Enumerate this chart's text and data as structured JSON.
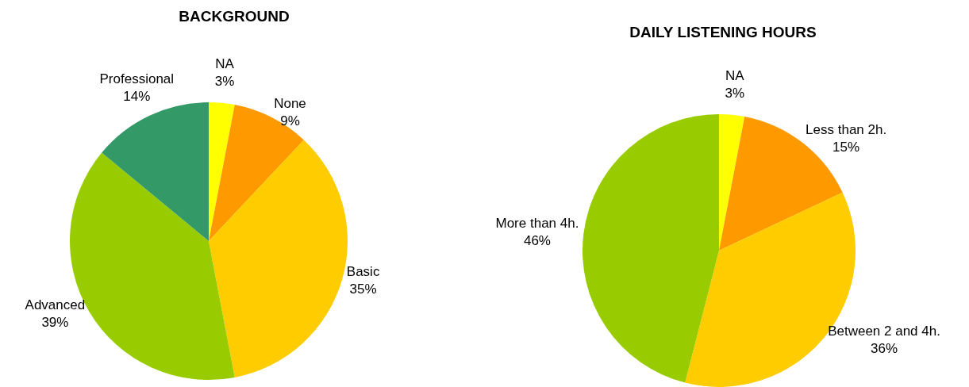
{
  "chart_data": [
    {
      "type": "pie",
      "title": "BACKGROUND",
      "categories": [
        "NA",
        "None",
        "Basic",
        "Advanced",
        "Professional"
      ],
      "values": [
        3,
        9,
        35,
        39,
        14
      ],
      "value_labels": [
        "3%",
        "9%",
        "35%",
        "39%",
        "14%"
      ],
      "colors": [
        "#ffff00",
        "#ff9900",
        "#ffcc00",
        "#99cc00",
        "#339966"
      ]
    },
    {
      "type": "pie",
      "title": "DAILY LISTENING HOURS",
      "categories": [
        "NA",
        "Less than 2h.",
        "Between 2 and 4h.",
        "More than 4h."
      ],
      "values": [
        3,
        15,
        36,
        46
      ],
      "value_labels": [
        "3%",
        "15%",
        "36%",
        "46%"
      ],
      "colors": [
        "#ffff00",
        "#ff9900",
        "#ffcc00",
        "#99cc00"
      ]
    }
  ]
}
